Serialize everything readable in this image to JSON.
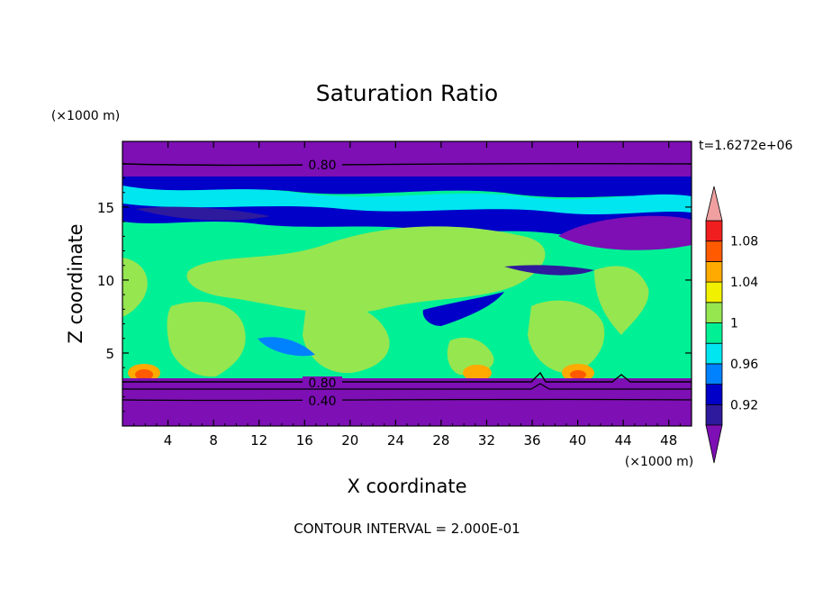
{
  "chart_data": {
    "type": "heatmap",
    "title": "Saturation Ratio",
    "xlabel": "X coordinate",
    "ylabel": "Z coordinate",
    "x_unit": "(×1000 m)",
    "y_unit": "(×1000 m)",
    "time_label": "t=1.6272e+06",
    "footnote": "CONTOUR INTERVAL = 2.000E-01",
    "xlim": [
      0,
      50
    ],
    "ylim": [
      0,
      19.5
    ],
    "x_ticks": [
      4,
      8,
      12,
      16,
      20,
      24,
      28,
      32,
      36,
      40,
      44,
      48
    ],
    "y_ticks": [
      5,
      10,
      15
    ],
    "colorbar": {
      "levels": [
        0.9,
        0.92,
        0.94,
        0.96,
        0.98,
        1.0,
        1.02,
        1.04,
        1.06,
        1.08,
        1.1
      ],
      "tick_labels": [
        "0.92",
        "0.96",
        "1",
        "1.04",
        "1.08"
      ],
      "tick_values": [
        0.92,
        0.96,
        1.0,
        1.04,
        1.08
      ],
      "colors": [
        "#2e1a9c",
        "#0000c8",
        "#0082ff",
        "#00e6f0",
        "#00f096",
        "#96e650",
        "#f0f000",
        "#ffaa00",
        "#ff5a00",
        "#f01e1e"
      ],
      "under_color": "#7d0fb4",
      "over_color": "#f0a0a0"
    },
    "contour_lines": [
      {
        "label": "0.80",
        "z": 18.5
      },
      {
        "label": "0.80",
        "z": 3.1
      },
      {
        "label": "0.40",
        "z": 1.7
      }
    ],
    "field_bands": [
      {
        "z_range": [
          0,
          3.3
        ],
        "value": "< 0.90"
      },
      {
        "z_range": [
          17.8,
          19.5
        ],
        "value": "< 0.90"
      },
      {
        "z_range": [
          3.3,
          17.8
        ],
        "value": "0.90 – 1.10"
      }
    ]
  }
}
